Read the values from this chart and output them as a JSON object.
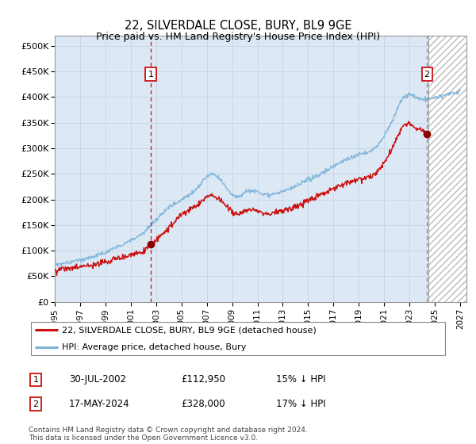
{
  "title": "22, SILVERDALE CLOSE, BURY, BL9 9GE",
  "subtitle": "Price paid vs. HM Land Registry's House Price Index (HPI)",
  "ytick_values": [
    0,
    50000,
    100000,
    150000,
    200000,
    250000,
    300000,
    350000,
    400000,
    450000,
    500000
  ],
  "ylim": [
    0,
    520000
  ],
  "xlim_start": 1995.0,
  "xlim_end": 2027.5,
  "hpi_color": "#7bb3d9",
  "price_color": "#cc1111",
  "sale1_x": 2002.58,
  "sale1_y": 112950,
  "sale1_label": "1",
  "sale1_date": "30-JUL-2002",
  "sale1_price": "£112,950",
  "sale1_note": "15% ↓ HPI",
  "sale2_x": 2024.38,
  "sale2_y": 328000,
  "sale2_label": "2",
  "sale2_date": "17-MAY-2024",
  "sale2_price": "£328,000",
  "sale2_note": "17% ↓ HPI",
  "legend_line1": "22, SILVERDALE CLOSE, BURY, BL9 9GE (detached house)",
  "legend_line2": "HPI: Average price, detached house, Bury",
  "footnote": "Contains HM Land Registry data © Crown copyright and database right 2024.\nThis data is licensed under the Open Government Licence v3.0.",
  "hatch_color": "#aaaaaa",
  "grid_color": "#c8d8e8",
  "background_color": "#dce8f4"
}
